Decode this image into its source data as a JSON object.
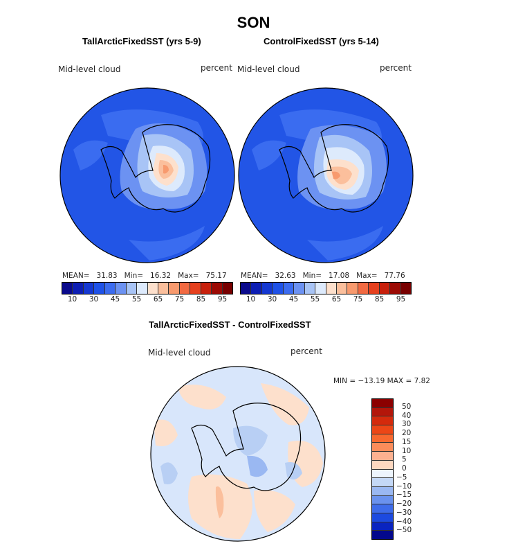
{
  "page": {
    "title": "SON",
    "bottom_title": "TallArcticFixedSST - ControlFixedSST"
  },
  "panels": [
    {
      "title": "TallArcticFixedSST (yrs 5-9)",
      "variable": "Mid-level cloud",
      "units": "percent",
      "stats": {
        "mean_label": "MEAN=",
        "mean": "31.83",
        "min_label": "Min=",
        "min": "16.32",
        "max_label": "Max=",
        "max": "75.17"
      }
    },
    {
      "title": "ControlFixedSST (yrs 5-14)",
      "variable": "Mid-level cloud",
      "units": "percent",
      "stats": {
        "mean_label": "MEAN=",
        "mean": "32.63",
        "min_label": "Min=",
        "min": "17.08",
        "max_label": "Max=",
        "max": "77.76"
      }
    }
  ],
  "diff_panel": {
    "variable": "Mid-level cloud",
    "units": "percent",
    "minmax": "MIN = −13.19 MAX =    7.82"
  },
  "colorbar_top": {
    "colors": [
      "#0a0a8c",
      "#0d1eb4",
      "#1538d2",
      "#1f52e8",
      "#3c6cf0",
      "#6c92f2",
      "#a8c4f6",
      "#ddeafc",
      "#fde0cc",
      "#fbbf9c",
      "#f89a6e",
      "#f26a42",
      "#e6401e",
      "#c8200c",
      "#9c0a04",
      "#780000"
    ],
    "tick_labels": [
      "10",
      "30",
      "45",
      "55",
      "65",
      "75",
      "85",
      "95"
    ]
  },
  "colorbar_diff": {
    "colors": [
      "#8b0000",
      "#b3160a",
      "#d42a0c",
      "#ec4616",
      "#f8682e",
      "#fb8c5a",
      "#fcb190",
      "#fdd8c0",
      "#eef5fd",
      "#c4d8f6",
      "#9ab8f2",
      "#6a92ee",
      "#3e6cea",
      "#1c4ae0",
      "#0a24c0",
      "#03088c"
    ],
    "tick_labels": [
      "50",
      "40",
      "30",
      "20",
      "15",
      "10",
      "5",
      "0",
      "−5",
      "−10",
      "−15",
      "−20",
      "−30",
      "−40",
      "−50"
    ]
  },
  "map_colors": {
    "ocean_dark": "#2255e6",
    "ocean_mid": "#3a6cf0",
    "ocean_light": "#6c92f2",
    "pale": "#a8c4f6",
    "white": "#ddeafc",
    "warm1": "#fde0cc",
    "warm2": "#fbbf9c",
    "warm3": "#f89a6e",
    "diff_base": "#d8e6fb",
    "diff_pos": "#fde0cc",
    "diff_neg": "#b8cff4",
    "diff_neg2": "#9ab8f2"
  }
}
